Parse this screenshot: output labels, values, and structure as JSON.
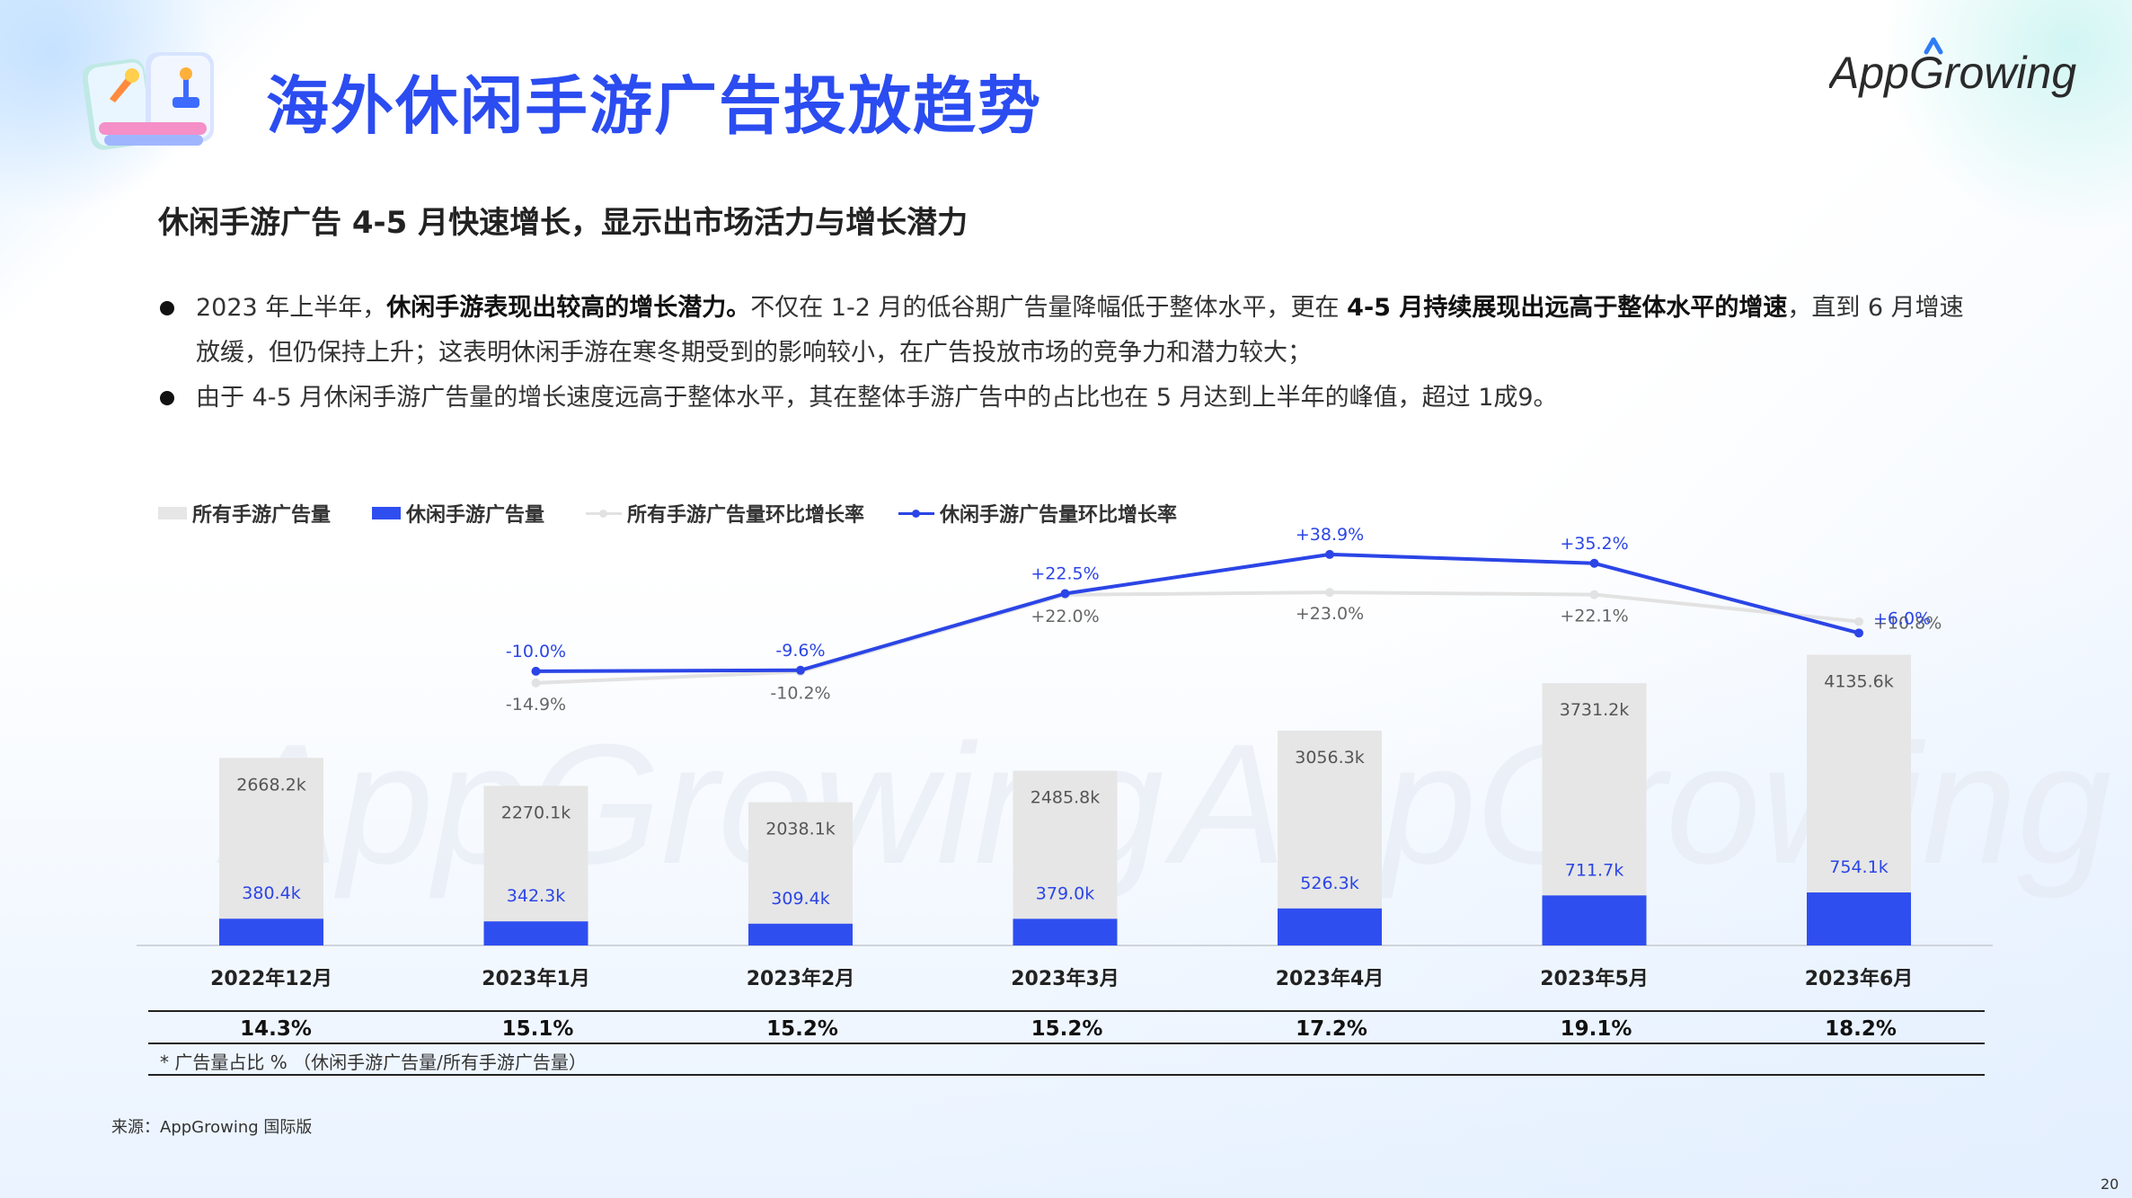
{
  "title": "海外休闲手游广告投放趋势",
  "logo_text": "AppGrowing",
  "subtitle": "休闲手游广告 4-5 月快速增长，显示出市场活力与增长潜力",
  "bullets": [
    {
      "parts": [
        {
          "text": "2023 年上半年，",
          "bold": false
        },
        {
          "text": "休闲手游表现出较高的增长潜力。",
          "bold": true
        },
        {
          "text": "不仅在 1-2 月的低谷期广告量降幅低于整体水平，更在 ",
          "bold": false
        },
        {
          "text": "4-5 月持续展现出远高于整体水平的增速",
          "bold": true
        },
        {
          "text": "，直到 6 月增速放缓，但仍保持上升；这表明休闲手游在寒冬期受到的影响较小，在广告投放市场的竞争力和潜力较大；",
          "bold": false
        }
      ]
    },
    {
      "parts": [
        {
          "text": "由于 4-5 月休闲手游广告量的增长速度远高于整体水平，其在整体手游广告中的占比也在 5 月达到上半年的峰值，超过 1成9。",
          "bold": false
        }
      ]
    }
  ],
  "legend": {
    "all_bar": "所有手游广告量",
    "casual_bar": "休闲手游广告量",
    "all_rate": "所有手游广告量环比增长率",
    "casual_rate": "休闲手游广告量环比增长率"
  },
  "colors": {
    "title": "#2b4cf0",
    "all_bar": "#e6e6e6",
    "casual_bar": "#2f4ef0",
    "all_rate_line": "#e2e2e2",
    "casual_rate_line": "#2b45e6"
  },
  "chart_data": {
    "type": "bar",
    "categories": [
      "2022年12月",
      "2023年1月",
      "2023年2月",
      "2023年3月",
      "2023年4月",
      "2023年5月",
      "2023年6月"
    ],
    "series": [
      {
        "name": "所有手游广告量",
        "type": "bar",
        "values": [
          2668.2,
          2270.1,
          2038.1,
          2485.8,
          3056.3,
          3731.2,
          4135.6
        ],
        "labels": [
          "2668.2k",
          "2270.1k",
          "2038.1k",
          "2485.8k",
          "3056.3k",
          "3731.2k",
          "4135.6k"
        ]
      },
      {
        "name": "休闲手游广告量",
        "type": "bar",
        "values": [
          380.4,
          342.3,
          309.4,
          379.0,
          526.3,
          711.7,
          754.1
        ],
        "labels": [
          "380.4k",
          "342.3k",
          "309.4k",
          "379.0k",
          "526.3k",
          "711.7k",
          "754.1k"
        ]
      },
      {
        "name": "所有手游广告量环比增长率",
        "type": "line",
        "values": [
          null,
          -14.9,
          -10.2,
          22.0,
          23.0,
          22.1,
          10.8
        ],
        "labels": [
          "",
          "-14.9%",
          "-10.2%",
          "+22.0%",
          "+23.0%",
          "+22.1%",
          "+10.8%"
        ]
      },
      {
        "name": "休闲手游广告量环比增长率",
        "type": "line",
        "values": [
          null,
          -10.0,
          -9.6,
          22.5,
          38.9,
          35.2,
          6.0
        ],
        "labels": [
          "",
          "-10.0%",
          "-9.6%",
          "+22.5%",
          "+38.9%",
          "+35.2%",
          "+6.0%"
        ]
      }
    ],
    "share": [
      "14.3%",
      "15.1%",
      "15.2%",
      "15.2%",
      "17.2%",
      "19.1%",
      "18.2%"
    ],
    "ylim": [
      0,
      4500
    ],
    "rate_ylim": [
      -30,
      40
    ]
  },
  "note": "* 广告量占比 %  （休闲手游广告量/所有手游广告量）",
  "source": "来源：AppGrowing 国际版",
  "page_number": "20"
}
